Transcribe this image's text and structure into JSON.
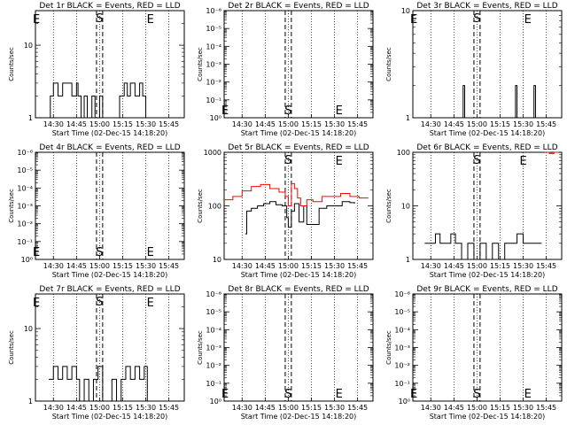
{
  "common": {
    "x_tick_labels": [
      "14:30",
      "14:45",
      "15:00",
      "15:15",
      "15:30",
      "15:45"
    ],
    "x_axis_label": "Start Time (02-Dec-15 14:18:20)",
    "y_axis_label": "Counts/sec",
    "colors": {
      "events": "#000000",
      "lld": "#ff0000"
    }
  },
  "chart_data": [
    {
      "type": "line",
      "title": "Det 1r BLACK = Events, RED = LLD",
      "xlim": [
        "14:18:20",
        "15:55"
      ],
      "ylim": [
        1,
        30
      ],
      "yscale": "log",
      "y_tick_labels": [
        "1",
        "10"
      ],
      "markers": [
        {
          "label": "E",
          "x": "14:19"
        },
        {
          "label": "S",
          "x": "15:00"
        },
        {
          "label": "E",
          "x": "15:33"
        }
      ],
      "series": [
        {
          "name": "Events",
          "x": [
            "14:26",
            "14:28",
            "14:30",
            "14:33",
            "14:36",
            "14:39",
            "14:42",
            "14:45",
            "14:46",
            "14:48",
            "14:50",
            "14:52",
            "14:55",
            "14:57",
            "15:00",
            "15:02",
            "15:05",
            "15:08",
            "15:10",
            "15:13",
            "15:16",
            "15:18",
            "15:20",
            "15:23",
            "15:26",
            "15:28",
            "15:30"
          ],
          "y": [
            1,
            2,
            3,
            2,
            3,
            3,
            2,
            3,
            2,
            1,
            2,
            1,
            2,
            1,
            2,
            1,
            1,
            1,
            1,
            2,
            3,
            2,
            3,
            2,
            3,
            2,
            1
          ]
        }
      ]
    },
    {
      "type": "line",
      "title": "Det 2r BLACK = Events, RED = LLD",
      "xlim": [
        "14:18:20",
        "15:55"
      ],
      "ylim": [
        1,
        1000000
      ],
      "yscale": "log",
      "y_tick_labels": [
        "10⁰",
        "10⁻¹",
        "10⁻²",
        "10⁻³",
        "10⁻⁴",
        "10⁻⁵",
        "10⁻⁶"
      ],
      "markers": [
        {
          "label": "E",
          "x": "14:19"
        },
        {
          "label": "S",
          "x": "15:00"
        },
        {
          "label": "E",
          "x": "15:33"
        }
      ],
      "series": []
    },
    {
      "type": "line",
      "title": "Det 3r BLACK = Events, RED = LLD",
      "xlim": [
        "14:18:20",
        "15:55"
      ],
      "ylim": [
        1,
        10
      ],
      "yscale": "log",
      "y_tick_labels": [
        "1",
        "10"
      ],
      "markers": [
        {
          "label": "E",
          "x": "14:19"
        },
        {
          "label": "S",
          "x": "15:00"
        },
        {
          "label": "E",
          "x": "15:33"
        }
      ],
      "series": [
        {
          "name": "Events",
          "x": [
            "14:50",
            "14:51",
            "14:52",
            "15:24",
            "15:25",
            "15:26",
            "15:36",
            "15:37",
            "15:38"
          ],
          "y": [
            1,
            2,
            1,
            1,
            2,
            1,
            1,
            2,
            1
          ]
        }
      ]
    },
    {
      "type": "line",
      "title": "Det 4r BLACK = Events, RED = LLD",
      "xlim": [
        "14:18:20",
        "15:55"
      ],
      "ylim": [
        1,
        1000000
      ],
      "yscale": "log",
      "y_tick_labels": [
        "10⁰",
        "10⁻¹",
        "10⁻²",
        "10⁻³",
        "10⁻⁴",
        "10⁻⁵",
        "10⁻⁶"
      ],
      "markers": [
        {
          "label": "E",
          "x": "14:19"
        },
        {
          "label": "S",
          "x": "15:00"
        },
        {
          "label": "E",
          "x": "15:33"
        }
      ],
      "series": []
    },
    {
      "type": "line",
      "title": "Det 5r BLACK = Events, RED = LLD",
      "xlim": [
        "14:18:20",
        "15:55"
      ],
      "ylim": [
        10,
        1000
      ],
      "yscale": "log",
      "y_tick_labels": [
        "10",
        "100",
        "1000"
      ],
      "markers": [
        {
          "label": "S",
          "x": "15:00"
        },
        {
          "label": "E",
          "x": "15:33"
        }
      ],
      "series": [
        {
          "name": "Events",
          "x": [
            "14:32",
            "14:33",
            "14:36",
            "14:40",
            "14:44",
            "14:48",
            "14:52",
            "14:56",
            "14:59",
            "15:00",
            "15:02",
            "15:04",
            "15:07",
            "15:10",
            "15:12",
            "15:16",
            "15:20",
            "15:25",
            "15:30",
            "15:35",
            "15:40",
            "15:43"
          ],
          "y": [
            30,
            80,
            90,
            100,
            110,
            120,
            105,
            100,
            60,
            40,
            80,
            110,
            50,
            100,
            45,
            45,
            90,
            100,
            100,
            120,
            115,
            110
          ]
        },
        {
          "name": "LLD",
          "x": [
            "14:18:20",
            "14:24",
            "14:30",
            "14:36",
            "14:42",
            "14:48",
            "14:54",
            "14:58",
            "15:00",
            "15:02",
            "15:04",
            "15:06",
            "15:08",
            "15:12",
            "15:16",
            "15:22",
            "15:28",
            "15:34",
            "15:40",
            "15:46",
            "15:52"
          ],
          "y": [
            130,
            150,
            190,
            230,
            250,
            210,
            180,
            150,
            100,
            260,
            210,
            140,
            100,
            130,
            120,
            150,
            150,
            170,
            150,
            140,
            140
          ]
        }
      ]
    },
    {
      "type": "line",
      "title": "Det 6r BLACK = Events, RED = LLD",
      "xlim": [
        "14:18:20",
        "15:55"
      ],
      "ylim": [
        1,
        100
      ],
      "yscale": "log",
      "y_tick_labels": [
        "1",
        "10",
        "100"
      ],
      "markers": [
        {
          "label": "S",
          "x": "15:00"
        },
        {
          "label": "E",
          "x": "15:30"
        }
      ],
      "series": [
        {
          "name": "Events",
          "x": [
            "14:26",
            "14:30",
            "14:33",
            "14:36",
            "14:40",
            "14:43",
            "14:46",
            "14:50",
            "14:54",
            "14:58",
            "15:02",
            "15:06",
            "15:10",
            "15:14",
            "15:18",
            "15:22",
            "15:26",
            "15:30",
            "15:34",
            "15:38",
            "15:42"
          ],
          "y": [
            2,
            2,
            3,
            2,
            2,
            3,
            2,
            1,
            2,
            1,
            2,
            1,
            2,
            1,
            2,
            2,
            3,
            2,
            2,
            2,
            2
          ]
        },
        {
          "name": "LLD",
          "x": [
            "15:44",
            "15:47",
            "15:50",
            "15:53"
          ],
          "y": [
            100,
            95,
            100,
            100
          ]
        }
      ]
    },
    {
      "type": "line",
      "title": "Det 7r BLACK = Events, RED = LLD",
      "xlim": [
        "14:18:20",
        "15:55"
      ],
      "ylim": [
        1,
        30
      ],
      "yscale": "log",
      "y_tick_labels": [
        "1",
        "10"
      ],
      "markers": [
        {
          "label": "E",
          "x": "14:19"
        },
        {
          "label": "S",
          "x": "15:00"
        },
        {
          "label": "E",
          "x": "15:33"
        }
      ],
      "series": [
        {
          "name": "Events",
          "x": [
            "14:27",
            "14:30",
            "14:33",
            "14:36",
            "14:39",
            "14:42",
            "14:45",
            "14:47",
            "14:50",
            "14:53",
            "14:56",
            "14:59",
            "15:02",
            "15:05",
            "15:08",
            "15:11",
            "15:14",
            "15:17",
            "15:20",
            "15:23",
            "15:26",
            "15:29",
            "15:31"
          ],
          "y": [
            2,
            3,
            2,
            3,
            2,
            3,
            2,
            1,
            2,
            1,
            2,
            3,
            1,
            1,
            2,
            1,
            2,
            3,
            2,
            3,
            2,
            3,
            1
          ]
        }
      ]
    },
    {
      "type": "line",
      "title": "Det 8r BLACK = Events, RED = LLD",
      "xlim": [
        "14:18:20",
        "15:55"
      ],
      "ylim": [
        1,
        1000000
      ],
      "yscale": "log",
      "y_tick_labels": [
        "10⁰",
        "10⁻¹",
        "10⁻²",
        "10⁻³",
        "10⁻⁴",
        "10⁻⁵",
        "10⁻⁶"
      ],
      "markers": [
        {
          "label": "E",
          "x": "14:19"
        },
        {
          "label": "S",
          "x": "15:00"
        },
        {
          "label": "E",
          "x": "15:33"
        }
      ],
      "series": []
    },
    {
      "type": "line",
      "title": "Det 9r BLACK = Events, RED = LLD",
      "xlim": [
        "14:18:20",
        "15:55"
      ],
      "ylim": [
        1,
        1000000
      ],
      "yscale": "log",
      "y_tick_labels": [
        "10⁰",
        "10⁻¹",
        "10⁻²",
        "10⁻³",
        "10⁻⁴",
        "10⁻⁵",
        "10⁻⁶"
      ],
      "markers": [
        {
          "label": "E",
          "x": "14:19"
        },
        {
          "label": "S",
          "x": "15:00"
        },
        {
          "label": "E",
          "x": "15:33"
        }
      ],
      "series": []
    }
  ]
}
